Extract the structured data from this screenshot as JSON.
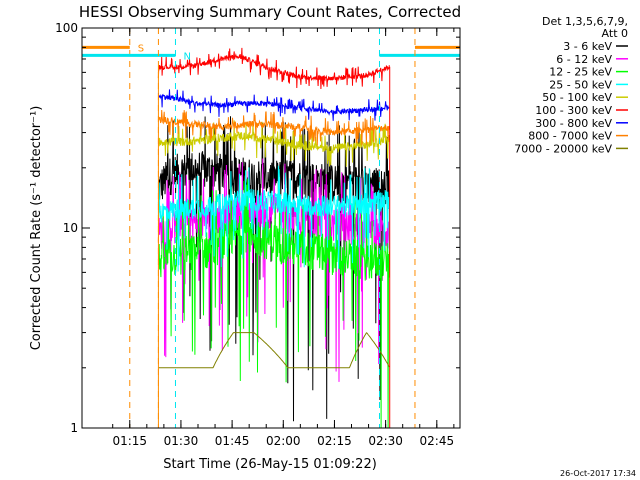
{
  "chart_data": {
    "type": "line",
    "title": "HESSI Observing Summary Count Rates, Corrected",
    "xlabel": "Start Time (26-May-15 01:09:22)",
    "ylabel": "Corrected Count Rate (s⁻¹ detector⁻¹)",
    "y_scale": "log",
    "ylim": [
      1,
      100
    ],
    "xlim_minutes_after_start": [
      -8.4,
      102.4
    ],
    "x_tick_labels": [
      "01:15",
      "01:30",
      "01:45",
      "02:00",
      "02:15",
      "02:30",
      "02:45"
    ],
    "x_tick_times": [
      5.6,
      20.6,
      35.6,
      50.6,
      65.6,
      80.6,
      95.6
    ],
    "y_tick_labels": [
      "1",
      "10",
      "100"
    ],
    "y_tick_values": [
      1,
      10,
      100
    ],
    "legend_header": [
      "Det 1,3,5,6,7,9,",
      "Att 0"
    ],
    "legend_position": "right",
    "timestamp": "26-Oct-2017 17:34",
    "markers": [
      {
        "label": "S",
        "color": "#ff8c00",
        "t_start": -8.4,
        "t_end": 5.6,
        "level": 80,
        "t_lines": [
          5.6
        ]
      },
      {
        "label": "N",
        "color": "#00e5ee",
        "t_start": -8.4,
        "t_end": 19.0,
        "level": 73,
        "t_lines": [
          19.0,
          -8.4
        ]
      },
      {
        "label": "",
        "color": "#00e5ee",
        "t_start": 78.8,
        "t_end": 102.4,
        "level": 73,
        "t_lines": [
          78.8,
          102.4
        ]
      },
      {
        "label": "",
        "color": "#ff8c00",
        "t_start": 89.2,
        "t_end": 102.4,
        "level": 80,
        "t_lines": [
          89.2
        ]
      },
      {
        "label": "",
        "color": "#ff8c00",
        "t_start": 14.0,
        "t_end": 14.0,
        "level": 1,
        "t_lines": [
          14.0
        ]
      }
    ],
    "data_window": [
      14.0,
      81.8
    ],
    "series": [
      {
        "name": "3 - 6 keV",
        "color": "#000000",
        "noise": 0.45,
        "times": [
          14,
          18,
          25,
          35,
          45,
          55,
          65,
          75,
          80.5,
          81.8
        ],
        "values": [
          16,
          19,
          20,
          19,
          18,
          18,
          17,
          17,
          16,
          16
        ]
      },
      {
        "name": "6 - 12 keV",
        "color": "#ff00ff",
        "noise": 0.4,
        "times": [
          14,
          20,
          30,
          38,
          45,
          55,
          65,
          75,
          81.8
        ],
        "values": [
          9.5,
          10.5,
          11,
          12,
          12.5,
          11.5,
          10.5,
          10,
          9.5
        ]
      },
      {
        "name": "12 - 25 keV",
        "color": "#00ff00",
        "noise": 0.45,
        "times": [
          14,
          22,
          30,
          38,
          45,
          55,
          65,
          75,
          81.8
        ],
        "values": [
          7,
          7.5,
          8,
          9.5,
          9,
          8,
          7.5,
          7,
          7
        ]
      },
      {
        "name": "25 - 50 keV",
        "color": "#00ffff",
        "noise": 0.25,
        "times": [
          14,
          20,
          30,
          40,
          50,
          60,
          70,
          81.8
        ],
        "values": [
          12,
          12.5,
          13,
          14,
          13.5,
          13,
          13,
          14
        ]
      },
      {
        "name": "50 - 100 keV",
        "color": "#cccc00",
        "noise": 0.1,
        "times": [
          14,
          22,
          30,
          38,
          45,
          55,
          65,
          75,
          81.8
        ],
        "values": [
          27,
          27,
          28,
          29,
          28,
          26,
          25,
          26,
          28
        ]
      },
      {
        "name": "100 - 300 keV",
        "color": "#ff0000",
        "noise": 0.06,
        "times": [
          14,
          20,
          25,
          32,
          38,
          45,
          55,
          65,
          75,
          81.8
        ],
        "values": [
          64,
          64,
          65,
          70,
          72,
          64,
          57,
          56,
          58,
          64
        ]
      },
      {
        "name": "300 - 800 keV",
        "color": "#0000ff",
        "noise": 0.06,
        "times": [
          14,
          20,
          25,
          32,
          38,
          45,
          55,
          65,
          75,
          81.8
        ],
        "values": [
          46,
          44,
          42,
          41,
          42,
          42,
          40,
          38,
          39,
          40
        ]
      },
      {
        "name": "800 - 7000 keV",
        "color": "#ff8000",
        "noise": 0.08,
        "times": [
          14,
          20,
          25,
          32,
          38,
          45,
          55,
          65,
          75,
          81.8
        ],
        "values": [
          35,
          34,
          33,
          32,
          33,
          33,
          32,
          30,
          31,
          32
        ]
      },
      {
        "name": "7000 - 20000 keV",
        "color": "#808000",
        "noise": 0.0,
        "times": [
          14,
          30,
          36,
          42,
          52,
          60,
          70,
          75,
          81.8
        ],
        "values": [
          2,
          2,
          3,
          3,
          2,
          2,
          2,
          3,
          2
        ]
      }
    ]
  }
}
